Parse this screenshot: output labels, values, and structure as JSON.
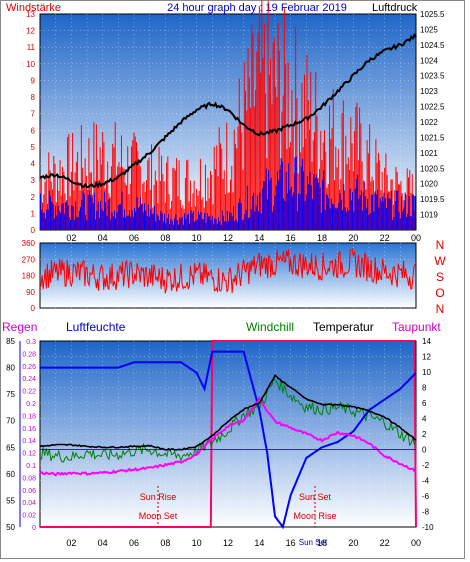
{
  "header": {
    "left": "Windstärke",
    "title": "24 hour graph day : 19 Februar 2019",
    "right": "Luftdruck"
  },
  "x_ticks": [
    "02",
    "04",
    "06",
    "08",
    "10",
    "12",
    "14",
    "16",
    "18",
    "20",
    "22",
    "00"
  ],
  "compass": [
    "N",
    "W",
    "S",
    "O",
    "N"
  ],
  "legend": {
    "regen": "Regen",
    "luftfeuchte": "Luftfeuchte",
    "windchill": "Windchill",
    "temperatur": "Temperatur",
    "taupunkt": "Taupunkt"
  },
  "annotations": {
    "sun_rise": "Sun Rise",
    "moon_set": "Moon Set",
    "sun_set": "Sun Set",
    "moon_rise": "Moon Rise",
    "footer_tick": "Sun Set"
  },
  "colors": {
    "wind_avg": "#0000ff",
    "wind_gust": "#ff0000",
    "pressure": "#000000",
    "direction": "#ff0000",
    "humidity": "#0000ff",
    "windchill": "#008000",
    "temperature": "#000000",
    "dewpoint": "#ff00ff",
    "rain": "#ff0066"
  },
  "chart_data": [
    {
      "type": "bar",
      "title": "24 hour graph day : 19 Februar 2019",
      "ylabel": "Windstärke",
      "ylabel_right": "Luftdruck",
      "y_ticks": [
        "0",
        "1",
        "2",
        "3",
        "4",
        "5",
        "6",
        "7",
        "8",
        "9",
        "10",
        "11",
        "12",
        "13"
      ],
      "ylim": [
        0,
        13
      ],
      "y2_ticks": [
        "1019",
        "1019.5",
        "1020",
        "1020.5",
        "1021",
        "1021.5",
        "1022",
        "1022.5",
        "1023",
        "1023.5",
        "1024",
        "1024.5",
        "1025",
        "1025.5"
      ],
      "y2lim": [
        1018.5,
        1025.5
      ],
      "x_hours": [
        0,
        24
      ],
      "series": [
        {
          "name": "Luftdruck",
          "x": [
            0,
            1,
            2,
            3,
            4,
            5,
            6,
            7,
            8,
            9,
            10,
            11,
            12,
            13,
            14,
            15,
            16,
            17,
            18,
            19,
            20,
            21,
            22,
            23,
            24
          ],
          "values": [
            1020.2,
            1020.3,
            1020.1,
            1019.9,
            1020.0,
            1020.2,
            1020.6,
            1021.0,
            1021.5,
            1022.0,
            1022.4,
            1022.6,
            1022.4,
            1021.9,
            1021.6,
            1021.7,
            1021.9,
            1022.1,
            1022.5,
            1023.0,
            1023.5,
            1024.0,
            1024.3,
            1024.5,
            1024.8
          ]
        },
        {
          "name": "Windstärke (avg)",
          "x": [
            0,
            2,
            4,
            6,
            8,
            10,
            12,
            14,
            16,
            18,
            20,
            22,
            24
          ],
          "values": [
            2,
            2,
            2,
            2,
            1,
            1,
            1,
            3,
            4,
            3,
            3,
            2,
            2
          ]
        },
        {
          "name": "Windstärke (gust)",
          "x": [
            0,
            2,
            4,
            6,
            8,
            10,
            12,
            14,
            16,
            18,
            20,
            22,
            24
          ],
          "values": [
            4,
            5,
            6,
            5,
            4,
            4,
            6,
            12,
            11,
            8,
            7,
            4,
            3
          ]
        }
      ]
    },
    {
      "type": "line",
      "ylabel": "direction",
      "y_ticks": [
        "0",
        "90",
        "180",
        "270",
        "360"
      ],
      "ylim": [
        0,
        360
      ],
      "series": [
        {
          "name": "Windrichtung",
          "x": [
            0,
            2,
            4,
            6,
            8,
            10,
            12,
            14,
            16,
            18,
            20,
            22,
            24
          ],
          "values": [
            180,
            200,
            170,
            190,
            160,
            180,
            150,
            240,
            250,
            230,
            250,
            200,
            180
          ]
        }
      ]
    },
    {
      "type": "line",
      "y_ticks_rain": [
        "0",
        "0.02",
        "0.04",
        "0.06",
        "0.08",
        "0.1",
        "0.12",
        "0.14",
        "0.16",
        "0.18",
        "0.2",
        "0.22",
        "0.24",
        "0.26",
        "0.28",
        "0.3"
      ],
      "y_ticks_hum": [
        "50",
        "55",
        "60",
        "65",
        "70",
        "75",
        "80",
        "85"
      ],
      "y_ticks_temp": [
        "-10",
        "-8",
        "-6",
        "-4",
        "-2",
        "0",
        "2",
        "4",
        "6",
        "8",
        "10",
        "12",
        "14"
      ],
      "ylim_temp": [
        -10,
        14
      ],
      "ylim_hum": [
        50,
        85
      ],
      "ylim_rain": [
        0,
        0.3
      ],
      "series": [
        {
          "name": "Luftfeuchte",
          "x": [
            0,
            1,
            2,
            3,
            4,
            5,
            6,
            7,
            8,
            9,
            10,
            10.5,
            11,
            12,
            13,
            14,
            14.5,
            15,
            15.5,
            16,
            17,
            18,
            19,
            20,
            21,
            22,
            23,
            24
          ],
          "values": [
            80,
            80,
            80,
            80,
            80,
            80,
            81,
            81,
            81,
            81,
            79,
            76,
            83,
            83,
            83,
            72,
            64,
            52,
            50,
            56,
            63,
            65,
            66,
            68,
            72,
            74,
            76,
            79
          ]
        },
        {
          "name": "Temperatur",
          "x": [
            0,
            1,
            2,
            3,
            4,
            5,
            6,
            7,
            8,
            9,
            10,
            11,
            12,
            13,
            14,
            15,
            16,
            17,
            18,
            19,
            20,
            21,
            22,
            23,
            24
          ],
          "values": [
            0.4,
            0.6,
            0.6,
            0.4,
            0.3,
            0.3,
            0.4,
            0.5,
            0.0,
            0.0,
            0.4,
            1.8,
            3.6,
            5.2,
            6.0,
            9.5,
            8.0,
            6.5,
            5.8,
            5.8,
            5.5,
            5.0,
            4.2,
            2.8,
            1.2
          ]
        },
        {
          "name": "Windchill",
          "x": [
            0,
            1,
            2,
            3,
            4,
            5,
            6,
            7,
            8,
            9,
            10,
            11,
            12,
            13,
            14,
            15,
            16,
            17,
            18,
            19,
            20,
            21,
            22,
            23,
            24
          ],
          "values": [
            -0.4,
            -0.8,
            -1.0,
            -0.4,
            -0.8,
            -0.6,
            -0.2,
            0.0,
            -0.6,
            -0.8,
            -0.2,
            1.0,
            2.5,
            4.5,
            5.5,
            9.0,
            7.0,
            5.5,
            5.2,
            5.4,
            5.0,
            4.2,
            3.5,
            2.0,
            0.8
          ]
        },
        {
          "name": "Taupunkt",
          "x": [
            0,
            1,
            2,
            3,
            4,
            5,
            6,
            7,
            8,
            9,
            10,
            11,
            12,
            13,
            14,
            15,
            16,
            17,
            18,
            19,
            20,
            21,
            22,
            23,
            24
          ],
          "values": [
            -3.0,
            -3.2,
            -3.0,
            -3.1,
            -3.0,
            -2.8,
            -2.6,
            -2.4,
            -2.0,
            -1.6,
            -0.6,
            1.4,
            3.0,
            3.8,
            6.5,
            3.6,
            2.8,
            2.0,
            1.2,
            2.2,
            1.8,
            0.8,
            -0.8,
            -1.8,
            -2.8
          ]
        },
        {
          "name": "Regen",
          "x": [
            0,
            10.9,
            10.9,
            23.9,
            23.9,
            24
          ],
          "values": [
            0,
            0,
            0.3,
            0.3,
            0,
            0
          ]
        }
      ]
    }
  ]
}
